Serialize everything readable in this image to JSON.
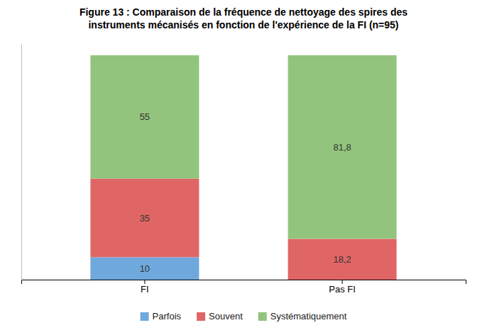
{
  "chart_data": {
    "type": "bar",
    "stacked": true,
    "title": "Figure 13 : Comparaison de la fréquence de nettoyage des spires des\ninstruments mécanisés en fonction de l'expérience de la FI (n=95)",
    "categories": [
      "FI",
      "Pas FI"
    ],
    "series": [
      {
        "name": "Parfois",
        "color": "#6fa8dc",
        "values": [
          10,
          0
        ],
        "value_labels": [
          "10",
          null
        ]
      },
      {
        "name": "Souvent",
        "color": "#e06666",
        "values": [
          35,
          18.2
        ],
        "value_labels": [
          "35",
          "18,2"
        ]
      },
      {
        "name": "Systématiquement",
        "color": "#93c47d",
        "values": [
          55,
          81.8
        ],
        "value_labels": [
          "55",
          "81,8"
        ]
      }
    ],
    "ylim": [
      0,
      105
    ],
    "data_labels": true,
    "tick_labels": "x",
    "grid": false,
    "legend": "bottom"
  }
}
